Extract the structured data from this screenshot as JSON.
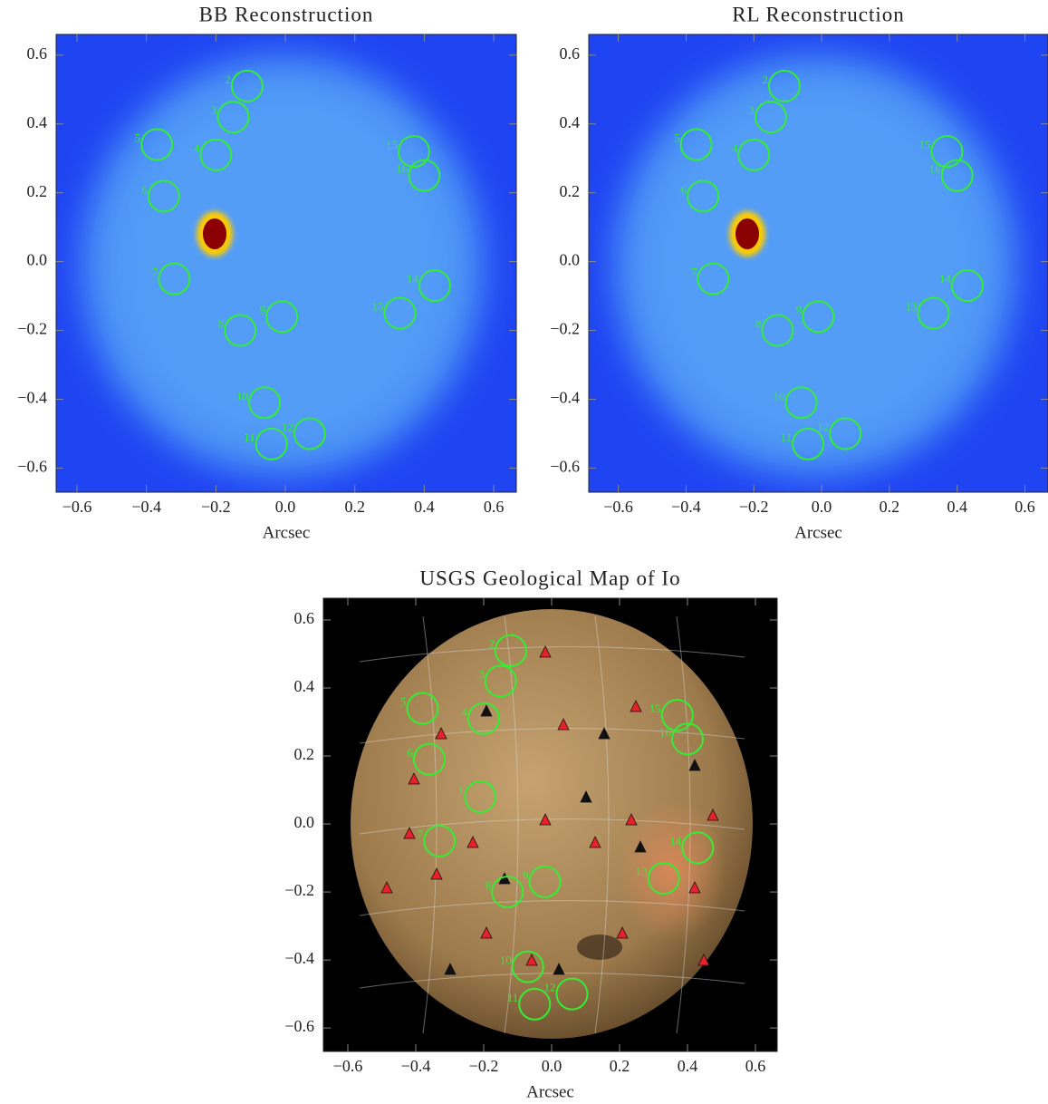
{
  "chart_data": [
    {
      "type": "scatter",
      "title": "BB Reconstruction",
      "x_label": "Arcsec",
      "labels": [
        "2",
        "3",
        "4",
        "5",
        "6",
        "7",
        "8",
        "9",
        "10",
        "11",
        "12",
        "13",
        "14",
        "15",
        "16"
      ],
      "x": [
        -0.11,
        -0.15,
        -0.2,
        -0.37,
        -0.35,
        -0.32,
        -0.13,
        -0.01,
        -0.06,
        -0.04,
        0.07,
        0.33,
        0.43,
        0.37,
        0.4
      ],
      "y": [
        0.51,
        0.42,
        0.31,
        0.34,
        0.19,
        -0.05,
        -0.2,
        -0.16,
        -0.41,
        -0.53,
        -0.5,
        -0.15,
        -0.07,
        0.32,
        0.25
      ],
      "color": "#33ee33",
      "xlim": [
        -0.66,
        0.665
      ],
      "ylim": [
        -0.67,
        0.66
      ],
      "xticks": [
        {
          "value": -0.6,
          "label": "−0.6"
        },
        {
          "value": -0.4,
          "label": "−0.4"
        },
        {
          "value": -0.2,
          "label": "−0.2"
        },
        {
          "value": 0,
          "label": "0.0"
        },
        0.2,
        0.4,
        0.6
      ],
      "yticks": [
        {
          "value": -0.6,
          "label": "−0.6"
        },
        {
          "value": -0.4,
          "label": "−0.4"
        },
        {
          "value": -0.2,
          "label": "−0.2"
        },
        {
          "value": 0,
          "label": "0.0"
        },
        0.2,
        0.4,
        0.6
      ]
    },
    {
      "type": "scatter",
      "title": "RL Reconstruction",
      "x_label": "Arcsec",
      "labels": [
        "2",
        "3",
        "4",
        "5",
        "6",
        "7",
        "8",
        "9",
        "10",
        "11",
        "12",
        "13",
        "14",
        "15",
        "16"
      ],
      "x": [
        -0.11,
        -0.15,
        -0.2,
        -0.37,
        -0.35,
        -0.32,
        -0.13,
        -0.01,
        -0.06,
        -0.04,
        0.07,
        0.33,
        0.43,
        0.37,
        0.4
      ],
      "y": [
        0.51,
        0.42,
        0.31,
        0.34,
        0.19,
        -0.05,
        -0.2,
        -0.16,
        -0.41,
        -0.53,
        -0.5,
        -0.15,
        -0.07,
        0.32,
        0.25
      ],
      "color": "#33ee33",
      "xlim": [
        -0.687,
        0.668
      ],
      "ylim": [
        -0.67,
        0.66
      ],
      "xticks": [
        {
          "value": -0.6,
          "label": "−0.6"
        },
        {
          "value": -0.4,
          "label": "−0.4"
        },
        {
          "value": -0.2,
          "label": "−0.2"
        },
        {
          "value": 0,
          "label": "0.0"
        },
        0.2,
        0.4,
        0.6
      ],
      "yticks": [
        {
          "value": -0.6,
          "label": "−0.6"
        },
        {
          "value": -0.4,
          "label": "−0.4"
        },
        {
          "value": -0.2,
          "label": "−0.2"
        },
        {
          "value": 0,
          "label": "0.0"
        },
        0.2,
        0.4,
        0.6
      ]
    },
    {
      "type": "scatter",
      "title": "USGS Geological Map of Io",
      "x_label": "Arcsec",
      "labels": [
        "1",
        "2",
        "3",
        "4",
        "5",
        "6",
        "7",
        "8",
        "9",
        "10",
        "11",
        "12",
        "13",
        "14",
        "15",
        "16"
      ],
      "x": [
        -0.21,
        -0.12,
        -0.15,
        -0.2,
        -0.38,
        -0.36,
        -0.33,
        -0.13,
        -0.02,
        -0.07,
        -0.05,
        0.06,
        0.33,
        0.43,
        0.37,
        0.4
      ],
      "y": [
        0.08,
        0.51,
        0.42,
        0.31,
        0.34,
        0.19,
        -0.05,
        -0.2,
        -0.17,
        -0.42,
        -0.53,
        -0.5,
        -0.16,
        -0.07,
        0.32,
        0.25
      ],
      "color": "#33ee33",
      "xlim": [
        -0.672,
        0.664
      ],
      "ylim": [
        -0.669,
        0.664
      ],
      "xticks": [
        {
          "value": -0.6,
          "label": "−0.6"
        },
        {
          "value": -0.4,
          "label": "−0.4"
        },
        {
          "value": -0.2,
          "label": "−0.2"
        },
        {
          "value": 0,
          "label": "0.0"
        },
        0.2,
        0.4,
        0.6
      ],
      "yticks": [
        {
          "value": -0.6,
          "label": "−0.6"
        },
        {
          "value": -0.4,
          "label": "−0.4"
        },
        {
          "value": -0.2,
          "label": "−0.2"
        },
        {
          "value": 0,
          "label": "0.0"
        },
        0.2,
        0.4,
        0.6
      ]
    }
  ]
}
